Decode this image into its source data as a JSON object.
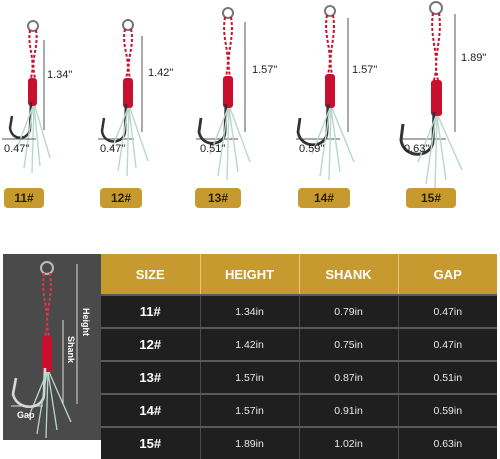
{
  "hooks": [
    {
      "size": "11#",
      "length": "1.34\"",
      "gap": "0.47\""
    },
    {
      "size": "12#",
      "length": "1.42\"",
      "gap": "0.47\""
    },
    {
      "size": "13#",
      "length": "1.57\"",
      "gap": "0.51\""
    },
    {
      "size": "14#",
      "length": "1.57\"",
      "gap": "0.59\""
    },
    {
      "size": "15#",
      "length": "1.89\"",
      "gap": "0.63\""
    }
  ],
  "diagram": {
    "height_label": "Height",
    "shank_label": "Shank",
    "gap_label": "Gap"
  },
  "table": {
    "headers": [
      "SIZE",
      "HEIGHT",
      "SHANK",
      "GAP"
    ],
    "rows": [
      [
        "11#",
        "1.34in",
        "0.79in",
        "0.47in"
      ],
      [
        "12#",
        "1.42in",
        "0.75in",
        "0.47in"
      ],
      [
        "13#",
        "1.57in",
        "0.87in",
        "0.51in"
      ],
      [
        "14#",
        "1.57in",
        "0.91in",
        "0.59in"
      ],
      [
        "15#",
        "1.89in",
        "1.02in",
        "0.63in"
      ]
    ]
  },
  "colors": {
    "gold": "#c69a2f",
    "dark_cell": "#1f1f1f",
    "panel": "#4a4a4a",
    "wrap": "#c8102e"
  }
}
